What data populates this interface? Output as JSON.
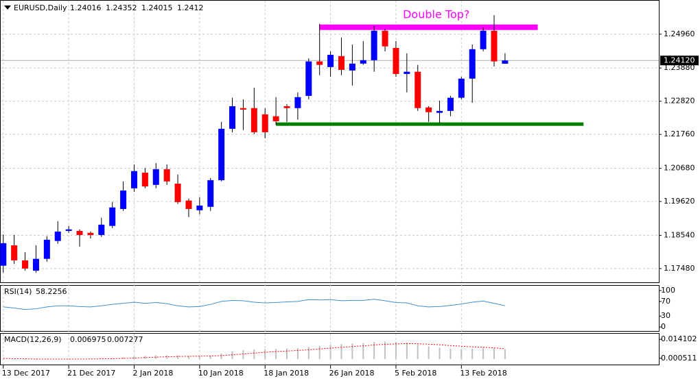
{
  "chart_data": [
    {
      "type": "candlestick",
      "title": "EURUSD,Daily",
      "categories": [
        "13 Dec 2017",
        null,
        null,
        null,
        null,
        null,
        "21 Dec 2017",
        null,
        null,
        null,
        null,
        null,
        "2 Jan 2018",
        null,
        null,
        null,
        null,
        null,
        "10 Jan 2018",
        null,
        null,
        null,
        null,
        null,
        "18 Jan 2018",
        null,
        null,
        null,
        null,
        null,
        "26 Jan 2018",
        null,
        null,
        null,
        null,
        null,
        "5 Feb 2018",
        null,
        null,
        null,
        null,
        null,
        "13 Feb 2018",
        null,
        null,
        null,
        null
      ],
      "open": [
        1.1757,
        1.1822,
        1.1774,
        1.1741,
        1.1779,
        1.1836,
        1.1868,
        1.1868,
        1.1862,
        1.1855,
        1.1884,
        1.1938,
        1.2004,
        1.2054,
        1.2015,
        1.2065,
        1.2019,
        1.1965,
        1.1934,
        1.1945,
        1.203,
        1.2194,
        1.226,
        1.226,
        1.224,
        1.2234,
        1.2266,
        1.226,
        1.2299,
        1.2409,
        1.2391,
        1.2426,
        1.238,
        1.2402,
        1.2413,
        1.2507,
        1.2452,
        1.2369,
        1.2376,
        1.2262,
        1.2245,
        1.2251,
        1.2293,
        1.2354,
        1.2448,
        1.2507,
        1.24016
      ],
      "high": [
        1.1857,
        1.1855,
        1.18,
        1.1822,
        1.1851,
        1.1899,
        1.1884,
        1.1873,
        1.1866,
        1.191,
        1.196,
        1.2026,
        1.208,
        1.2069,
        1.2085,
        1.208,
        1.2048,
        1.1971,
        1.1976,
        1.2037,
        1.2216,
        1.2293,
        1.2288,
        1.2325,
        1.226,
        1.2295,
        1.2273,
        1.231,
        1.2419,
        1.2529,
        1.2441,
        1.2485,
        1.2463,
        1.2474,
        1.2522,
        1.2513,
        1.2474,
        1.2435,
        1.2398,
        1.2266,
        1.2284,
        1.2299,
        1.236,
        1.2463,
        1.2518,
        1.2557,
        1.24352
      ],
      "low": [
        1.1735,
        1.1763,
        1.1741,
        1.1735,
        1.177,
        1.1827,
        1.1862,
        1.1818,
        1.1844,
        1.1849,
        1.1877,
        1.1932,
        1.1993,
        1.2004,
        1.2004,
        1.2015,
        1.1954,
        1.1912,
        1.1921,
        1.1932,
        1.2026,
        1.2183,
        1.219,
        1.2177,
        1.2164,
        1.2207,
        1.2216,
        1.2223,
        1.2288,
        1.2365,
        1.236,
        1.2365,
        1.2332,
        1.2398,
        1.2376,
        1.2441,
        1.236,
        1.231,
        1.2251,
        1.2216,
        1.2212,
        1.2234,
        1.2288,
        1.2277,
        1.2441,
        1.2393,
        1.24015
      ],
      "close": [
        1.1829,
        1.1774,
        1.1748,
        1.1779,
        1.184,
        1.1866,
        1.1873,
        1.1855,
        1.1855,
        1.1888,
        1.1943,
        1.1997,
        1.2059,
        1.201,
        1.2065,
        1.2026,
        1.196,
        1.1938,
        1.1949,
        1.203,
        1.2194,
        1.2266,
        1.2255,
        1.2183,
        1.2183,
        1.2218,
        1.226,
        1.2295,
        1.2409,
        1.2398,
        1.243,
        1.2382,
        1.2402,
        1.2413,
        1.2507,
        1.2457,
        1.2369,
        1.2376,
        1.226,
        1.2247,
        1.2251,
        1.2293,
        1.2354,
        1.2448,
        1.2507,
        1.2409,
        1.2412
      ],
      "up_color": "#0000ff",
      "down_color": "#ff0000",
      "xlim": [
        -0.3,
        60.1
      ],
      "ylim": [
        1.1704,
        1.2605
      ],
      "yticks": [
        {
          "value": 1.2496,
          "label": "1.24960"
        },
        {
          "value": 1.2388,
          "label": "1.23880"
        },
        {
          "value": 1.2282,
          "label": "1.22820"
        },
        {
          "value": 1.2176,
          "label": "1.21760"
        },
        {
          "value": 1.2068,
          "label": "1.20680"
        },
        {
          "value": 1.1962,
          "label": "1.19620"
        },
        {
          "value": 1.1854,
          "label": "1.18540"
        },
        {
          "value": 1.1748,
          "label": "1.17480"
        }
      ],
      "grid": true,
      "current_price": {
        "value": 1.2412,
        "label": "1.24120"
      },
      "lines": [
        {
          "x": [
            29,
            49
          ],
          "y": 1.2518,
          "color": "#ff00ff"
        },
        {
          "x": [
            25,
            53.2
          ],
          "y": 1.2209,
          "color": "#007f00"
        }
      ],
      "annotations": [
        {
          "text": "Double Top?",
          "x": 39.7,
          "y": 1.2557,
          "color": "#ff00ff"
        }
      ]
    },
    {
      "type": "line",
      "title": "RSI(14)",
      "color": "#3a8fd0",
      "values": [
        55,
        52,
        48,
        50,
        55,
        58,
        58,
        56,
        55,
        58,
        62,
        65,
        68,
        65,
        67,
        64,
        58,
        55,
        56,
        62,
        70,
        73,
        72,
        68,
        66,
        67,
        69,
        70,
        75,
        74,
        75,
        72,
        73,
        73,
        76,
        72,
        67,
        66,
        58,
        55,
        56,
        59,
        63,
        68,
        71,
        65,
        58.2256
      ],
      "ylim": [
        -11,
        115
      ],
      "yticks": [
        100,
        70,
        30,
        0
      ]
    },
    {
      "type": "macd",
      "title": "MACD(12,26,9)",
      "bar_color": "#c0c0c0",
      "signal_color": "#ff0000",
      "histogram": [
        -0.0004,
        -0.0005,
        -0.0006,
        -0.0006,
        -0.0004,
        -0.0002,
        0,
        0.0001,
        0.0002,
        0.0004,
        0.0008,
        0.0013,
        0.0019,
        0.0022,
        0.0026,
        0.0027,
        0.0025,
        0.0022,
        0.0021,
        0.0024,
        0.0038,
        0.0054,
        0.0064,
        0.0068,
        0.0071,
        0.0073,
        0.0075,
        0.0077,
        0.0087,
        0.0095,
        0.0103,
        0.0107,
        0.0111,
        0.0114,
        0.0122,
        0.0125,
        0.0122,
        0.0118,
        0.0104,
        0.0091,
        0.0081,
        0.0074,
        0.0071,
        0.0074,
        0.008,
        0.0076,
        0.006975
      ],
      "signal": [
        0.0004,
        0.0002,
        0.0001,
        0,
        -0.0001,
        -0.0001,
        -0.0001,
        0,
        0,
        0.0001,
        0.0002,
        0.0004,
        0.0007,
        0.001,
        0.0013,
        0.0016,
        0.0018,
        0.0019,
        0.002,
        0.0021,
        0.0024,
        0.003,
        0.0036,
        0.0042,
        0.0048,
        0.0053,
        0.0057,
        0.0061,
        0.0066,
        0.0072,
        0.0078,
        0.0084,
        0.0089,
        0.0094,
        0.01,
        0.0105,
        0.0108,
        0.011,
        0.0109,
        0.0106,
        0.0102,
        0.0096,
        0.0091,
        0.0087,
        0.0084,
        0.008,
        0.007277
      ],
      "ylim": [
        -0.0045,
        0.0186
      ],
      "yticks": [
        0.014102,
        0.000511
      ]
    }
  ]
}
